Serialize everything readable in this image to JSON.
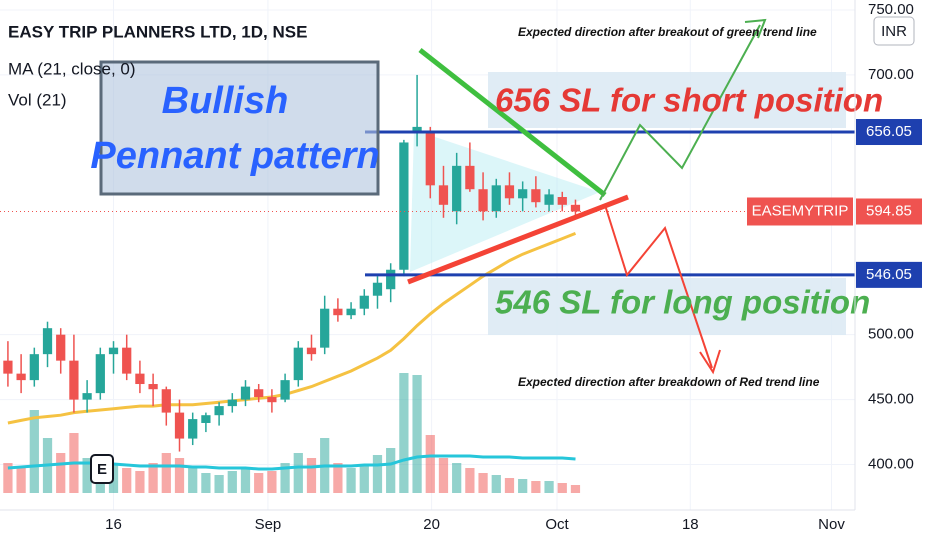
{
  "chart_data": {
    "type": "candlestick",
    "title": "EASY TRIP PLANNERS LTD, 1D, NSE",
    "indicators": [
      "MA (21, close, 0)",
      "Vol (21)"
    ],
    "currency": "INR",
    "symbol": "EASEMYTRIP",
    "event_marker": "E",
    "annotations": {
      "pattern": [
        "Bullish",
        "Pennant pattern"
      ],
      "short_sl": "656 SL for short position",
      "long_sl": "546 SL for long position",
      "up_note": "Expected direction after breakout of green trend line",
      "down_note": "Expected direction after breakdown of Red trend line"
    },
    "categories": [
      null,
      null,
      null,
      null,
      null,
      null,
      null,
      null,
      null,
      null,
      null,
      null,
      null,
      null,
      null,
      null,
      null,
      null,
      null,
      null,
      null,
      null,
      null,
      null,
      null,
      null,
      null,
      null,
      null,
      null,
      null,
      null,
      null,
      null,
      null,
      null,
      null,
      null,
      null,
      null,
      null,
      null,
      null,
      null
    ],
    "open": [
      480,
      470,
      465,
      485,
      500,
      480,
      450,
      455,
      485,
      490,
      470,
      462,
      458,
      440,
      420,
      432,
      438,
      445,
      450,
      458,
      452,
      450,
      465,
      490,
      490,
      520,
      515,
      520,
      530,
      535,
      550,
      655,
      655,
      615,
      595,
      630,
      612,
      595,
      615,
      605,
      612,
      600,
      606,
      600
    ],
    "high": [
      495,
      485,
      490,
      510,
      505,
      500,
      465,
      490,
      495,
      500,
      480,
      470,
      460,
      450,
      440,
      440,
      448,
      455,
      465,
      462,
      458,
      470,
      495,
      500,
      530,
      528,
      525,
      535,
      545,
      555,
      650,
      700,
      660,
      630,
      640,
      648,
      625,
      620,
      625,
      618,
      622,
      612,
      610,
      604
    ],
    "low": [
      460,
      455,
      460,
      475,
      470,
      440,
      440,
      450,
      470,
      465,
      455,
      445,
      430,
      410,
      415,
      425,
      430,
      440,
      445,
      448,
      440,
      448,
      460,
      480,
      485,
      510,
      512,
      515,
      520,
      525,
      545,
      645,
      605,
      590,
      585,
      610,
      588,
      590,
      600,
      595,
      598,
      595,
      595,
      590
    ],
    "close": [
      470,
      465,
      485,
      505,
      480,
      450,
      455,
      485,
      490,
      470,
      462,
      458,
      440,
      420,
      435,
      438,
      445,
      450,
      460,
      452,
      448,
      465,
      490,
      485,
      520,
      515,
      520,
      530,
      540,
      550,
      648,
      660,
      615,
      600,
      630,
      612,
      595,
      615,
      605,
      612,
      602,
      608,
      600,
      594.85
    ],
    "ma": [
      432,
      434,
      436,
      437,
      438,
      440,
      441,
      442,
      443,
      444,
      445,
      445,
      446,
      446,
      446,
      447,
      448,
      449,
      450,
      451,
      452,
      454,
      457,
      460,
      464,
      468,
      472,
      477,
      482,
      488,
      497,
      507,
      516,
      524,
      531,
      538,
      545,
      551,
      557,
      562,
      566,
      570,
      574,
      578
    ],
    "volume": [
      30,
      25,
      83,
      55,
      40,
      60,
      35,
      30,
      28,
      25,
      22,
      30,
      40,
      35,
      25,
      20,
      18,
      22,
      25,
      20,
      22,
      30,
      40,
      35,
      55,
      30,
      25,
      28,
      38,
      45,
      120,
      118,
      58,
      35,
      30,
      25,
      20,
      18,
      15,
      14,
      12,
      12,
      10,
      8
    ],
    "volume_ma": [
      25,
      26,
      27,
      28,
      29,
      30,
      30,
      30,
      29,
      28,
      27,
      27,
      27,
      27,
      26,
      26,
      25,
      25,
      25,
      24,
      24,
      25,
      26,
      26,
      27,
      27,
      27,
      28,
      28,
      29,
      33,
      36,
      37,
      37,
      37,
      37,
      36,
      36,
      36,
      35,
      35,
      35,
      35,
      34
    ],
    "volume_lim": [
      0,
      150
    ],
    "levels": [
      656.05,
      546.05
    ],
    "up_color": "#26a69a",
    "down_color": "#ef5350",
    "ma_color": "#f5c242",
    "volume_ma_color": "#26c6da",
    "xlim": [
      -0.6,
      63.8
    ],
    "xticks": [
      {
        "value": 8,
        "label": "16"
      },
      {
        "value": 19.7,
        "label": "Sep"
      },
      {
        "value": 32.1,
        "label": "20"
      },
      {
        "value": 41.6,
        "label": "Oct"
      },
      {
        "value": 51.7,
        "label": "18"
      },
      {
        "value": 62.4,
        "label": "Nov"
      }
    ],
    "ylim": [
      365,
      757.7
    ],
    "yticks": [
      {
        "value": 400,
        "label": "400.00"
      },
      {
        "value": 450,
        "label": "450.00"
      },
      {
        "value": 500,
        "label": "500.00"
      },
      {
        "value": 700,
        "label": "700.00"
      },
      {
        "value": 750,
        "label": "750.00"
      }
    ],
    "grid": true
  }
}
